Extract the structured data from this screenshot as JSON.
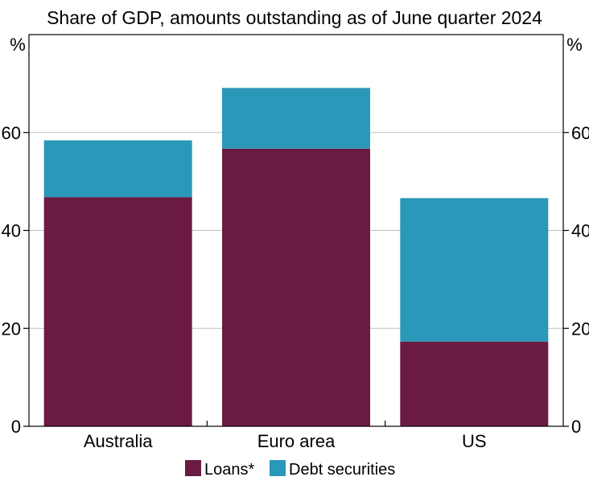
{
  "chart_data": {
    "type": "bar",
    "stacked": true,
    "subtitle": "Share of GDP, amounts outstanding as of June quarter 2024",
    "ylabel_left": "%",
    "ylabel_right": "%",
    "categories": [
      "Australia",
      "Euro area",
      "US"
    ],
    "series": [
      {
        "name": "Loans*",
        "color": "#6b1a41",
        "values": [
          46.8,
          56.7,
          17.3
        ]
      },
      {
        "name": "Debt securities",
        "color": "#2a98b8",
        "values": [
          11.6,
          12.4,
          29.3
        ]
      }
    ],
    "ylim": [
      0,
      80
    ],
    "yticks": [
      "0",
      "20",
      "40",
      "60"
    ],
    "grid": true,
    "legend_position": "bottom"
  }
}
